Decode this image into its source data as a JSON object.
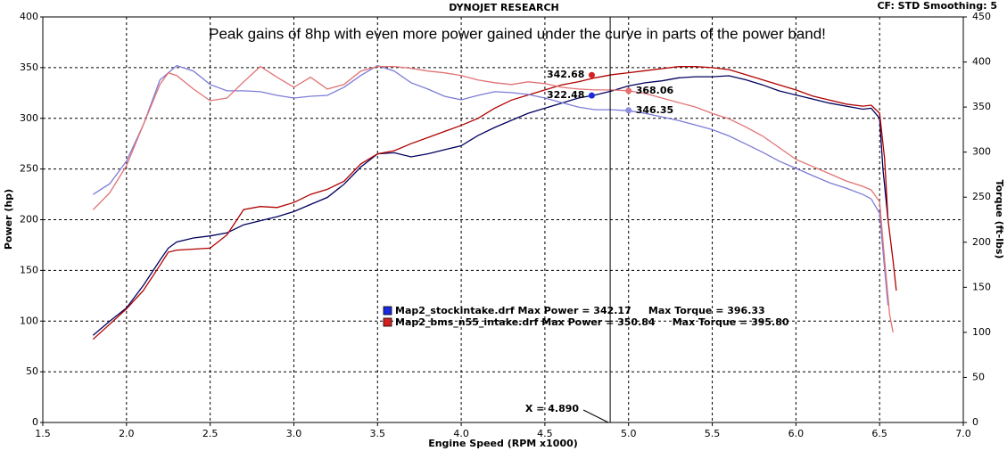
{
  "chart_data": {
    "type": "line",
    "header": "DYNOJET RESEARCH",
    "corner_note": "CF: STD  Smoothing: 5",
    "annotation": "Peak gains of 8hp with even more power gained under the curve in parts of the power band!",
    "x_label": "Engine Speed (RPM x1000)",
    "y_label": "Power (hp)",
    "y2_label": "Torque (ft-lbs)",
    "xlim": [
      1.5,
      7.0
    ],
    "xticks": [
      1.5,
      {
        "value": 2,
        "label": "2.0"
      },
      2.5,
      {
        "value": 3,
        "label": "3.0"
      },
      3.5,
      {
        "value": 4,
        "label": "4.0"
      },
      4.5,
      {
        "value": 5,
        "label": "5.0"
      },
      5.5,
      {
        "value": 6,
        "label": "6.0"
      },
      6.5,
      {
        "value": 7,
        "label": "7.0"
      }
    ],
    "ylim": [
      0,
      400
    ],
    "yticks": [
      0,
      50,
      100,
      150,
      200,
      250,
      300,
      350,
      400
    ],
    "y2lim": [
      0,
      450
    ],
    "y2ticks": [
      0,
      50,
      100,
      150,
      200,
      250,
      300,
      350,
      400,
      450
    ],
    "grid": true,
    "series": [
      {
        "color": "#00005e",
        "axis": "y",
        "x": [
          1.8,
          1.9,
          2.0,
          2.1,
          2.2,
          2.25,
          2.3,
          2.4,
          2.5,
          2.6,
          2.7,
          2.8,
          2.9,
          3.0,
          3.1,
          3.2,
          3.3,
          3.4,
          3.5,
          3.6,
          3.7,
          3.8,
          3.9,
          4.0,
          4.1,
          4.2,
          4.3,
          4.4,
          4.5,
          4.6,
          4.7,
          4.8,
          4.9,
          5.0,
          5.1,
          5.2,
          5.3,
          5.4,
          5.5,
          5.6,
          5.7,
          5.8,
          5.9,
          6.0,
          6.1,
          6.2,
          6.3,
          6.4,
          6.45,
          6.5,
          6.52,
          6.55
        ],
        "values": [
          86,
          100,
          113,
          135,
          160,
          172,
          178,
          182,
          184,
          187,
          195,
          199,
          203,
          208,
          215,
          222,
          235,
          252,
          265,
          266,
          262,
          265,
          269,
          273,
          283,
          291,
          298,
          305,
          310,
          315,
          320,
          323,
          327,
          332,
          335,
          337,
          340,
          341,
          341,
          342,
          338,
          333,
          327,
          323,
          319,
          315,
          312,
          309,
          310,
          300,
          250,
          200
        ]
      },
      {
        "color": "#b00000",
        "axis": "y",
        "x": [
          1.8,
          1.9,
          2.0,
          2.1,
          2.2,
          2.25,
          2.3,
          2.4,
          2.5,
          2.6,
          2.7,
          2.8,
          2.9,
          3.0,
          3.1,
          3.2,
          3.3,
          3.4,
          3.5,
          3.6,
          3.7,
          3.8,
          3.9,
          4.0,
          4.1,
          4.2,
          4.3,
          4.4,
          4.5,
          4.6,
          4.7,
          4.8,
          4.9,
          5.0,
          5.1,
          5.2,
          5.3,
          5.4,
          5.5,
          5.6,
          5.7,
          5.8,
          5.9,
          6.0,
          6.1,
          6.2,
          6.3,
          6.4,
          6.45,
          6.5,
          6.53,
          6.55,
          6.58,
          6.6
        ],
        "values": [
          82,
          97,
          112,
          130,
          155,
          168,
          170,
          171,
          172,
          185,
          210,
          213,
          212,
          217,
          225,
          230,
          238,
          255,
          265,
          268,
          275,
          281,
          287,
          293,
          300,
          310,
          318,
          323,
          328,
          333,
          336,
          340,
          343,
          345,
          347,
          349,
          351,
          351,
          350,
          348,
          343,
          338,
          333,
          328,
          322,
          318,
          314,
          312,
          313,
          305,
          260,
          200,
          160,
          130
        ]
      },
      {
        "color": "#7c7cd8",
        "axis": "y2",
        "x": [
          1.8,
          1.9,
          2.0,
          2.1,
          2.2,
          2.3,
          2.4,
          2.5,
          2.6,
          2.7,
          2.8,
          2.9,
          3.0,
          3.1,
          3.2,
          3.3,
          3.4,
          3.5,
          3.6,
          3.7,
          3.8,
          3.9,
          4.0,
          4.1,
          4.2,
          4.3,
          4.4,
          4.5,
          4.6,
          4.7,
          4.8,
          4.9,
          5.0,
          5.1,
          5.2,
          5.3,
          5.4,
          5.5,
          5.6,
          5.7,
          5.8,
          5.9,
          6.0,
          6.1,
          6.2,
          6.3,
          6.4,
          6.45,
          6.5,
          6.53,
          6.55
        ],
        "values": [
          253,
          265,
          290,
          330,
          380,
          396,
          390,
          375,
          368,
          368,
          367,
          363,
          360,
          362,
          363,
          372,
          385,
          396,
          390,
          377,
          370,
          362,
          358,
          363,
          367,
          366,
          364,
          360,
          355,
          350,
          347,
          347,
          346,
          343,
          339,
          335,
          330,
          325,
          318,
          309,
          300,
          290,
          282,
          274,
          266,
          260,
          253,
          248,
          232,
          170,
          130
        ]
      },
      {
        "color": "#e27272",
        "axis": "y2",
        "x": [
          1.8,
          1.9,
          2.0,
          2.1,
          2.2,
          2.25,
          2.3,
          2.4,
          2.5,
          2.6,
          2.7,
          2.8,
          2.9,
          3.0,
          3.1,
          3.2,
          3.3,
          3.4,
          3.5,
          3.6,
          3.7,
          3.8,
          3.9,
          4.0,
          4.1,
          4.2,
          4.3,
          4.4,
          4.5,
          4.6,
          4.7,
          4.8,
          4.9,
          5.0,
          5.1,
          5.2,
          5.3,
          5.4,
          5.5,
          5.6,
          5.7,
          5.8,
          5.9,
          6.0,
          6.1,
          6.2,
          6.3,
          6.4,
          6.45,
          6.5,
          6.53,
          6.56,
          6.58
        ],
        "values": [
          236,
          255,
          285,
          330,
          375,
          388,
          385,
          370,
          357,
          360,
          378,
          395,
          383,
          372,
          383,
          370,
          375,
          390,
          395,
          395,
          393,
          390,
          388,
          385,
          380,
          377,
          375,
          378,
          376,
          372,
          370,
          369,
          369,
          368,
          365,
          360,
          355,
          350,
          343,
          337,
          328,
          318,
          305,
          292,
          284,
          276,
          268,
          262,
          258,
          245,
          180,
          120,
          100
        ]
      }
    ],
    "legend": [
      {
        "label": "Map2_stockintake.drf Max Power = 342.17     Max Torque = 396.33",
        "color": "#1a2ae0"
      },
      {
        "label": "Map2_bms_n55_intake.drf Max Power = 350.84     Max Torque = 395.80",
        "color": "#d62020"
      }
    ],
    "cursor": {
      "x": 4.89,
      "label": "X = 4.890"
    },
    "markers": [
      {
        "x": 4.78,
        "value": 342.68,
        "axis": "y",
        "color": "#d62020",
        "side": "left"
      },
      {
        "x": 4.78,
        "value": 322.48,
        "axis": "y",
        "color": "#1a2ae0",
        "side": "left"
      },
      {
        "x": 5.0,
        "value": 368.06,
        "axis": "y2",
        "color": "#e87070",
        "side": "right"
      },
      {
        "x": 5.0,
        "value": 346.35,
        "axis": "y2",
        "color": "#8c8ce0",
        "side": "right"
      }
    ]
  }
}
